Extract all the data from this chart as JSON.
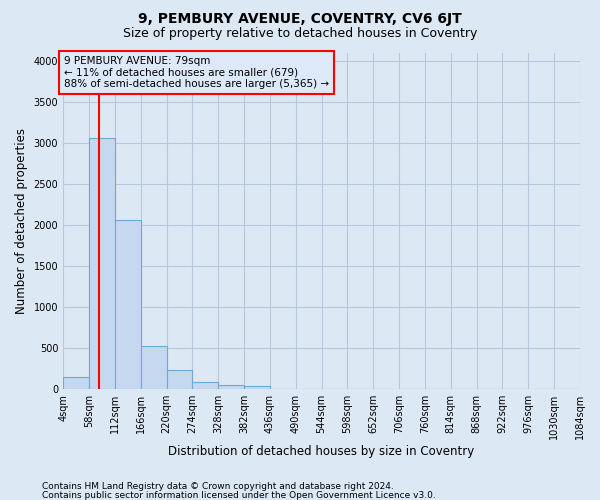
{
  "title": "9, PEMBURY AVENUE, COVENTRY, CV6 6JT",
  "subtitle": "Size of property relative to detached houses in Coventry",
  "xlabel": "Distribution of detached houses by size in Coventry",
  "ylabel": "Number of detached properties",
  "bar_edges": [
    4,
    58,
    112,
    166,
    220,
    274,
    328,
    382,
    436,
    490,
    544,
    598,
    652,
    706,
    760,
    814,
    868,
    922,
    976,
    1030,
    1084
  ],
  "bar_heights": [
    150,
    3060,
    2060,
    520,
    230,
    80,
    50,
    30,
    0,
    0,
    0,
    0,
    0,
    0,
    0,
    0,
    0,
    0,
    0,
    0
  ],
  "bar_color": "#c5d8f0",
  "bar_edge_color": "#6aaad4",
  "property_line_x": 79,
  "property_line_color": "red",
  "annotation_text": "9 PEMBURY AVENUE: 79sqm\n← 11% of detached houses are smaller (679)\n88% of semi-detached houses are larger (5,365) →",
  "annotation_box_color": "red",
  "annotation_box_facecolor": "#dde8f8",
  "ylim": [
    0,
    4100
  ],
  "yticks": [
    0,
    500,
    1000,
    1500,
    2000,
    2500,
    3000,
    3500,
    4000
  ],
  "footer1": "Contains HM Land Registry data © Crown copyright and database right 2024.",
  "footer2": "Contains public sector information licensed under the Open Government Licence v3.0.",
  "bg_color": "#dde8f5",
  "plot_bg_color": "#dde8f5",
  "grid_color": "#b8c8dc",
  "title_fontsize": 10,
  "subtitle_fontsize": 9,
  "axis_fontsize": 8.5,
  "tick_fontsize": 7,
  "footer_fontsize": 6.5,
  "ann_fontsize": 7.5
}
